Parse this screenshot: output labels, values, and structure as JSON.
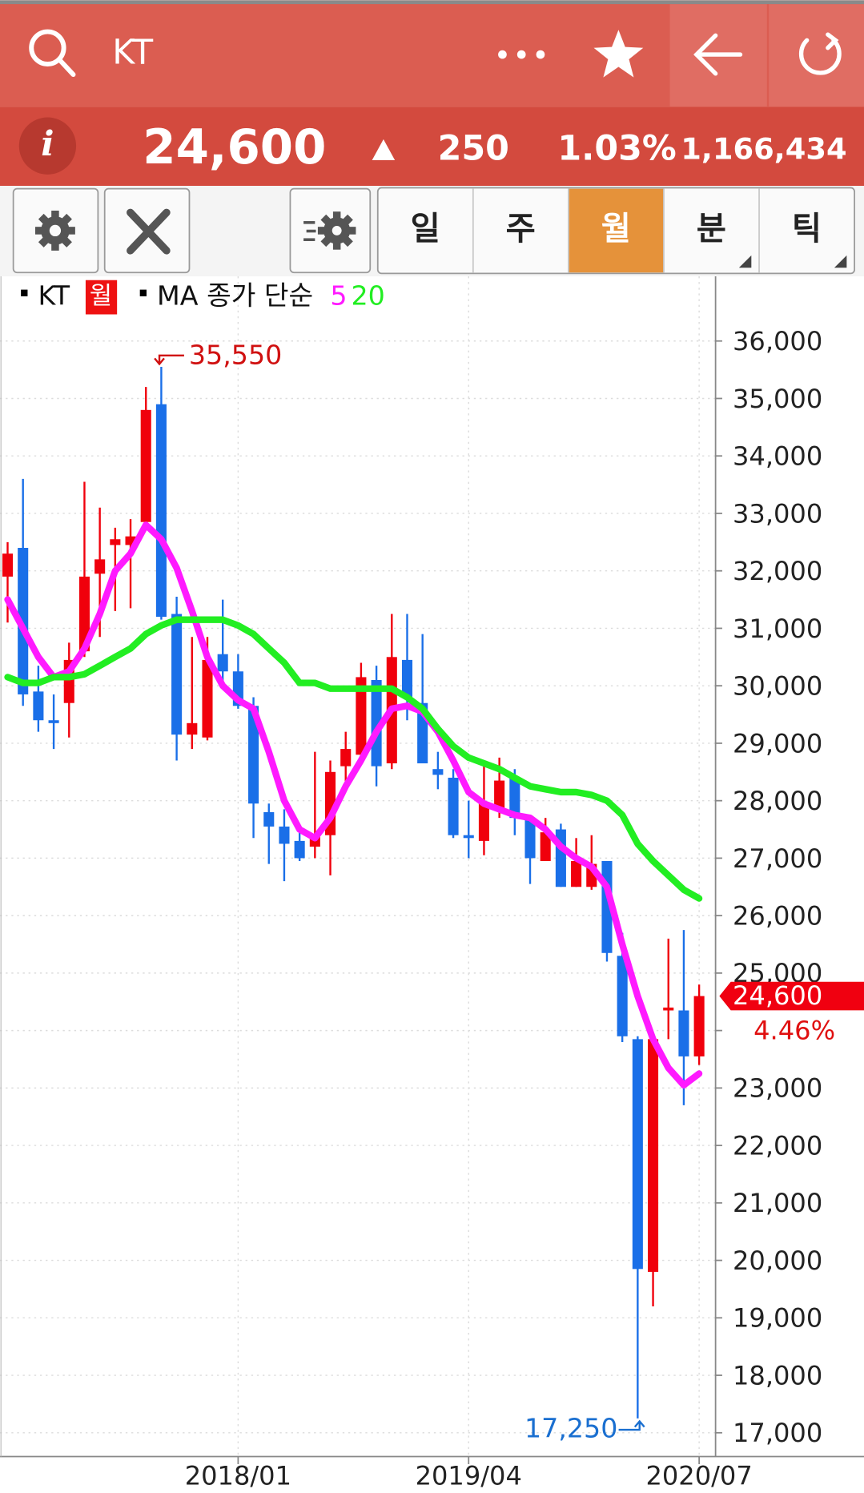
{
  "header": {
    "title": "KT",
    "price": "24,600",
    "change": "250",
    "change_pct": "1.03%",
    "volume": "1,166,434"
  },
  "toolbar": {
    "tabs": [
      "일",
      "주",
      "월",
      "분",
      "틱"
    ],
    "selected_tab": 2
  },
  "chart_data": {
    "type": "candlestick",
    "legend_period": "월",
    "ma_label": "MA 종가 단순",
    "high_label": "35,550",
    "low_label": "17,250",
    "last_label": "24,600",
    "last_change_label": "4.46%",
    "up_color": "#f0000c",
    "down_color": "#1a6fe8",
    "categories": [
      null,
      null,
      null,
      null,
      null,
      null,
      null,
      null,
      null,
      null,
      null,
      null,
      null,
      null,
      null,
      "2018/01",
      null,
      null,
      null,
      null,
      null,
      null,
      null,
      null,
      null,
      null,
      null,
      null,
      null,
      null,
      "2019/04",
      null,
      null,
      null,
      null,
      null,
      null,
      null,
      null,
      null,
      null,
      null,
      null,
      null,
      null,
      "2020/07"
    ],
    "series": [
      {
        "name": "KT",
        "open": [
          31900,
          32400,
          29900,
          29400,
          29700,
          30600,
          31950,
          32450,
          32450,
          32850,
          34900,
          31250,
          29150,
          29100,
          30550,
          30250,
          29650,
          27800,
          27550,
          27300,
          27200,
          27400,
          28600,
          28800,
          30100,
          28650,
          30450,
          29700,
          28550,
          28400,
          27400,
          27300,
          27850,
          28400,
          27700,
          26950,
          27500,
          26500,
          26500,
          26950,
          25300,
          23850,
          19800,
          24350,
          24350,
          23550
        ],
        "high": [
          32500,
          33600,
          30350,
          29850,
          30750,
          33550,
          33100,
          32750,
          32900,
          35200,
          35550,
          31550,
          30850,
          30850,
          31500,
          30550,
          29800,
          27950,
          27850,
          27500,
          28850,
          28700,
          29200,
          30400,
          30350,
          31250,
          31250,
          30900,
          28850,
          28550,
          28000,
          28600,
          28750,
          28550,
          27750,
          27700,
          27600,
          27350,
          27400,
          26950,
          25700,
          23900,
          23850,
          25600,
          25750,
          24800
        ],
        "low": [
          31100,
          29650,
          29200,
          28900,
          29100,
          30500,
          30850,
          31300,
          31350,
          32750,
          31150,
          28700,
          28900,
          29050,
          30000,
          29600,
          27350,
          26900,
          26600,
          26950,
          27000,
          26700,
          28200,
          28750,
          28250,
          28550,
          29400,
          28650,
          28200,
          27350,
          27000,
          27050,
          27700,
          27400,
          26550,
          26950,
          26500,
          26500,
          26450,
          25200,
          23800,
          17250,
          19200,
          23850,
          22700,
          23400
        ],
        "close": [
          32300,
          29850,
          29400,
          29350,
          30450,
          31900,
          32200,
          32550,
          32600,
          34800,
          31200,
          29150,
          29350,
          30450,
          30250,
          29650,
          27950,
          27550,
          27250,
          27000,
          27400,
          28500,
          28900,
          30150,
          28600,
          30500,
          29800,
          28650,
          28450,
          27400,
          27350,
          27950,
          28350,
          27700,
          27000,
          27450,
          26500,
          26950,
          26900,
          25350,
          23900,
          19850,
          23850,
          24400,
          23550,
          24600
        ]
      },
      {
        "name": "5",
        "color": "#ff1aff",
        "values": [
          31500,
          31000,
          30500,
          30150,
          30250,
          30650,
          31250,
          32000,
          32300,
          32800,
          32550,
          32050,
          31300,
          30500,
          30000,
          29750,
          29600,
          28850,
          28000,
          27500,
          27350,
          27700,
          28250,
          28700,
          29200,
          29600,
          29650,
          29550,
          29200,
          28700,
          28150,
          27950,
          27850,
          27750,
          27700,
          27500,
          27200,
          27000,
          26850,
          26500,
          25500,
          24600,
          23850,
          23350,
          23050,
          23250
        ]
      },
      {
        "name": "20",
        "color": "#22ee22",
        "values": [
          30150,
          30050,
          30050,
          30150,
          30150,
          30200,
          30350,
          30500,
          30650,
          30900,
          31050,
          31150,
          31150,
          31150,
          31150,
          31050,
          30900,
          30650,
          30400,
          30050,
          30050,
          29950,
          29950,
          29950,
          29950,
          29950,
          29800,
          29600,
          29250,
          28950,
          28750,
          28650,
          28550,
          28400,
          28250,
          28200,
          28150,
          28150,
          28100,
          28000,
          27750,
          27250,
          26950,
          26700,
          26450,
          26300
        ]
      }
    ],
    "ylim": [
      16586,
      37126
    ],
    "yticks": [
      {
        "value": 17000,
        "label": "17,000"
      },
      {
        "value": 18000,
        "label": "18,000"
      },
      {
        "value": 19000,
        "label": "19,000"
      },
      {
        "value": 20000,
        "label": "20,000"
      },
      {
        "value": 21000,
        "label": "21,000"
      },
      {
        "value": 22000,
        "label": "22,000"
      },
      {
        "value": 23000,
        "label": "23,000"
      },
      {
        "value": 24000,
        "label": "24,000"
      },
      {
        "value": 25000,
        "label": "25,000"
      },
      {
        "value": 26000,
        "label": "26,000"
      },
      {
        "value": 27000,
        "label": "27,000"
      },
      {
        "value": 28000,
        "label": "28,000"
      },
      {
        "value": 29000,
        "label": "29,000"
      },
      {
        "value": 30000,
        "label": "30,000"
      },
      {
        "value": 31000,
        "label": "31,000"
      },
      {
        "value": 32000,
        "label": "32,000"
      },
      {
        "value": 33000,
        "label": "33,000"
      },
      {
        "value": 34000,
        "label": "34,000"
      },
      {
        "value": 35000,
        "label": "35,000"
      },
      {
        "value": 36000,
        "label": "36,000"
      }
    ],
    "grid": true
  }
}
